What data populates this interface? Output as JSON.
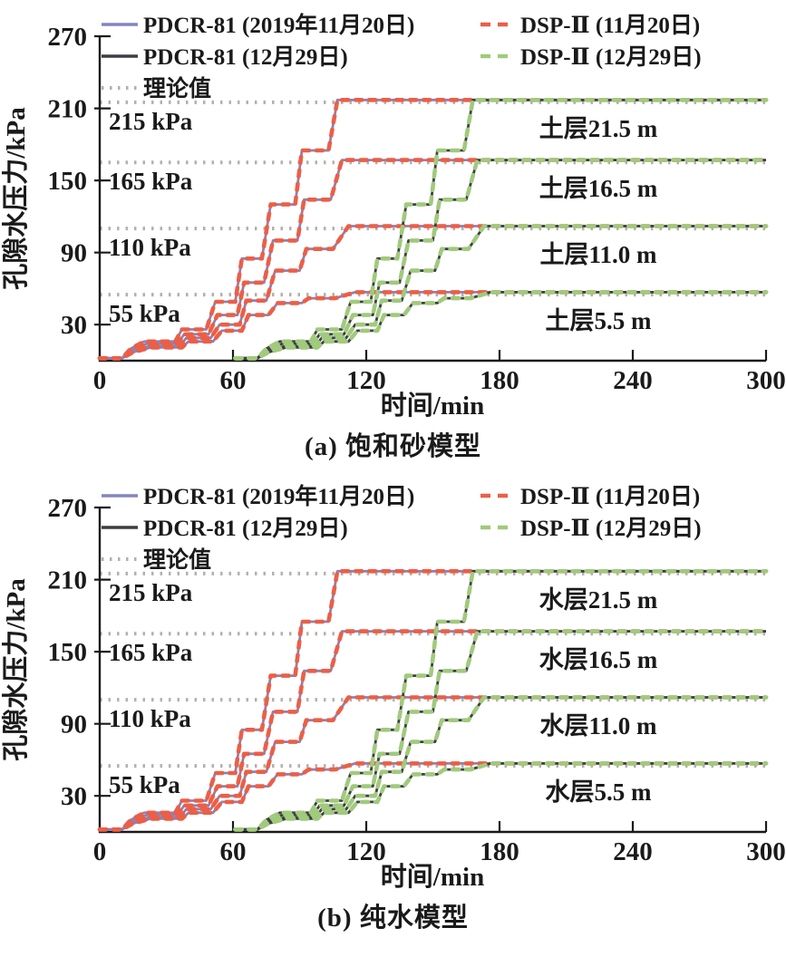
{
  "colors": {
    "axis": "#1a1a1a",
    "text": "#1a1a1a",
    "pdcr_nov": "#8285c0",
    "pdcr_dec": "#3d3e42",
    "dsp_nov": "#ea5f48",
    "dsp_dec": "#a0ca7c",
    "theory": "#b5afab"
  },
  "legend": {
    "col1": [
      {
        "id": "pdcr81-nov20",
        "label": "PDCR-81 (2019年11月20日)",
        "style": "solid",
        "color_key": "pdcr_nov"
      },
      {
        "id": "pdcr81-dec29",
        "label": "PDCR-81 (12月29日)",
        "style": "solid",
        "color_key": "pdcr_dec"
      },
      {
        "id": "theory",
        "label": "理论值",
        "style": "dotted",
        "color_key": "theory"
      }
    ],
    "col2": [
      {
        "id": "dsp2-nov20",
        "label": "DSP-Ⅱ (11月20日)",
        "style": "dashed",
        "color_key": "dsp_nov"
      },
      {
        "id": "dsp2-dec29",
        "label": "DSP-Ⅱ (12月29日)",
        "style": "dashed",
        "color_key": "dsp_dec"
      }
    ]
  },
  "chart_data": [
    {
      "type": "line",
      "panel": "a",
      "title": "(a) 饱和砂模型",
      "xlabel": "时间/min",
      "ylabel": "孔隙水压力/kPa",
      "xlim": [
        0,
        300
      ],
      "xticks": [
        0,
        60,
        120,
        180,
        240,
        300
      ],
      "ylim": [
        0,
        270
      ],
      "yticks": [
        270,
        210,
        150,
        90,
        30
      ],
      "grid": false,
      "legend_position": "top-inside",
      "theory_lines": [
        {
          "value": 215,
          "label": "215 kPa"
        },
        {
          "value": 165,
          "label": "165 kPa"
        },
        {
          "value": 110,
          "label": "110 kPa"
        },
        {
          "value": 55,
          "label": "55 kPa"
        }
      ],
      "layer_labels": [
        {
          "value": 215,
          "text": "土层21.5 m"
        },
        {
          "value": 165,
          "text": "土层16.5 m"
        },
        {
          "value": 110,
          "text": "土层11.0 m"
        },
        {
          "value": 55,
          "text": "土层5.5 m"
        }
      ],
      "groups": [
        {
          "id": "nov20",
          "label": "2019年11月20日",
          "time_shift": 0,
          "solid_key": "pdcr_nov",
          "dash_key": "dsp_nov"
        },
        {
          "id": "dec29",
          "label": "12月29日",
          "time_shift": 61,
          "solid_key": "pdcr_dec",
          "dash_key": "dsp_dec"
        }
      ],
      "levels": [
        {
          "target": 215,
          "t": [
            0,
            10,
            14,
            20,
            34,
            37,
            48,
            52,
            61,
            64,
            73,
            77,
            88,
            91,
            103,
            107,
            300
          ],
          "v": [
            2,
            2,
            10,
            16,
            16,
            26,
            26,
            49,
            49,
            85,
            85,
            130,
            130,
            175,
            175,
            217,
            217
          ]
        },
        {
          "target": 165,
          "t": [
            0,
            10,
            14,
            21,
            35,
            38,
            49,
            53,
            62,
            65,
            74,
            78,
            89,
            92,
            104,
            109,
            300
          ],
          "v": [
            2,
            2,
            9,
            14,
            14,
            22,
            22,
            38,
            38,
            65,
            65,
            100,
            100,
            134,
            134,
            167,
            167
          ]
        },
        {
          "target": 110,
          "t": [
            0,
            10,
            15,
            22,
            36,
            39,
            50,
            54,
            63,
            66,
            75,
            79,
            90,
            93,
            105,
            112,
            300
          ],
          "v": [
            2,
            2,
            8,
            12,
            12,
            19,
            19,
            30,
            30,
            50,
            50,
            75,
            75,
            93,
            93,
            112,
            112
          ]
        },
        {
          "target": 55,
          "t": [
            0,
            10,
            15,
            23,
            37,
            40,
            51,
            55,
            64,
            67,
            76,
            80,
            91,
            94,
            106,
            115,
            300
          ],
          "v": [
            2,
            2,
            7,
            11,
            11,
            16,
            16,
            25,
            25,
            38,
            38,
            48,
            48,
            52,
            52,
            57,
            57
          ]
        }
      ]
    },
    {
      "type": "line",
      "panel": "b",
      "title": "(b) 纯水模型",
      "xlabel": "时间/min",
      "ylabel": "孔隙水压力/kPa",
      "xlim": [
        0,
        300
      ],
      "xticks": [
        0,
        60,
        120,
        180,
        240,
        300
      ],
      "ylim": [
        0,
        270
      ],
      "yticks": [
        270,
        210,
        150,
        90,
        30
      ],
      "grid": false,
      "legend_position": "top-inside",
      "theory_lines": [
        {
          "value": 215,
          "label": "215 kPa"
        },
        {
          "value": 165,
          "label": "165 kPa"
        },
        {
          "value": 110,
          "label": "110 kPa"
        },
        {
          "value": 55,
          "label": "55 kPa"
        }
      ],
      "layer_labels": [
        {
          "value": 215,
          "text": "水层21.5 m"
        },
        {
          "value": 165,
          "text": "水层16.5 m"
        },
        {
          "value": 110,
          "text": "水层11.0 m"
        },
        {
          "value": 55,
          "text": "水层5.5 m"
        }
      ],
      "groups": [
        {
          "id": "nov20",
          "label": "2019年11月20日",
          "time_shift": 0,
          "solid_key": "pdcr_nov",
          "dash_key": "dsp_nov"
        },
        {
          "id": "dec29",
          "label": "12月29日",
          "time_shift": 61,
          "solid_key": "pdcr_dec",
          "dash_key": "dsp_dec"
        }
      ],
      "levels": [
        {
          "target": 215,
          "t": [
            0,
            10,
            14,
            20,
            34,
            37,
            48,
            52,
            61,
            64,
            73,
            77,
            88,
            91,
            103,
            107,
            300
          ],
          "v": [
            2,
            2,
            10,
            16,
            16,
            26,
            26,
            49,
            49,
            85,
            85,
            130,
            130,
            175,
            175,
            217,
            217
          ]
        },
        {
          "target": 165,
          "t": [
            0,
            10,
            14,
            21,
            35,
            38,
            49,
            53,
            62,
            65,
            74,
            78,
            89,
            92,
            104,
            109,
            300
          ],
          "v": [
            2,
            2,
            9,
            14,
            14,
            22,
            22,
            38,
            38,
            65,
            65,
            100,
            100,
            134,
            134,
            167,
            167
          ]
        },
        {
          "target": 110,
          "t": [
            0,
            10,
            15,
            22,
            36,
            39,
            50,
            54,
            63,
            66,
            75,
            79,
            90,
            93,
            105,
            112,
            300
          ],
          "v": [
            2,
            2,
            8,
            12,
            12,
            19,
            19,
            30,
            30,
            50,
            50,
            75,
            75,
            93,
            93,
            112,
            112
          ]
        },
        {
          "target": 55,
          "t": [
            0,
            10,
            15,
            23,
            37,
            40,
            51,
            55,
            64,
            67,
            76,
            80,
            91,
            94,
            106,
            115,
            300
          ],
          "v": [
            2,
            2,
            7,
            11,
            11,
            16,
            16,
            25,
            25,
            38,
            38,
            48,
            48,
            52,
            52,
            57,
            57
          ]
        }
      ]
    }
  ]
}
